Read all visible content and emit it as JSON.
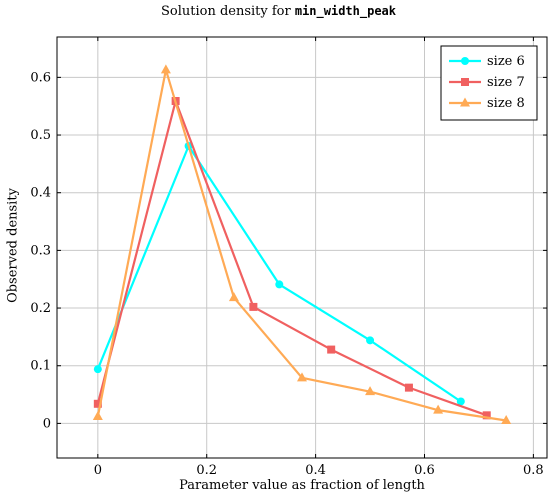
{
  "chart_data": {
    "type": "line",
    "title_prefix": "Solution density for ",
    "title_code": "min_width_peak",
    "xlabel": "Parameter value as fraction of length",
    "ylabel": "Observed density",
    "xlim": [
      -0.075,
      0.825
    ],
    "ylim": [
      -0.06,
      0.67
    ],
    "x_ticks": [
      0,
      0.2,
      0.4,
      0.6,
      0.8
    ],
    "x_tick_labels": [
      "0",
      "0.2",
      "0.4",
      "0.6",
      "0.8"
    ],
    "y_ticks": [
      0,
      0.1,
      0.2,
      0.3,
      0.4,
      0.5,
      0.6
    ],
    "y_tick_labels": [
      "0",
      "0.1",
      "0.2",
      "0.3",
      "0.4",
      "0.5",
      "0.6"
    ],
    "grid": true,
    "legend_position": "top-right",
    "series": [
      {
        "name": "size 6",
        "color": "#00ffff",
        "marker": "circle",
        "x": [
          0,
          0.1667,
          0.3333,
          0.5,
          0.6667
        ],
        "y": [
          0.094,
          0.481,
          0.241,
          0.144,
          0.038
        ]
      },
      {
        "name": "size 7",
        "color": "#f06060",
        "marker": "square",
        "x": [
          0,
          0.1429,
          0.2857,
          0.4286,
          0.5714,
          0.7143
        ],
        "y": [
          0.034,
          0.559,
          0.202,
          0.128,
          0.062,
          0.014
        ]
      },
      {
        "name": "size 8",
        "color": "#ffaa55",
        "marker": "triangle",
        "x": [
          0,
          0.125,
          0.25,
          0.375,
          0.5,
          0.625,
          0.75
        ],
        "y": [
          0.012,
          0.613,
          0.218,
          0.079,
          0.055,
          0.023,
          0.005
        ]
      }
    ]
  }
}
